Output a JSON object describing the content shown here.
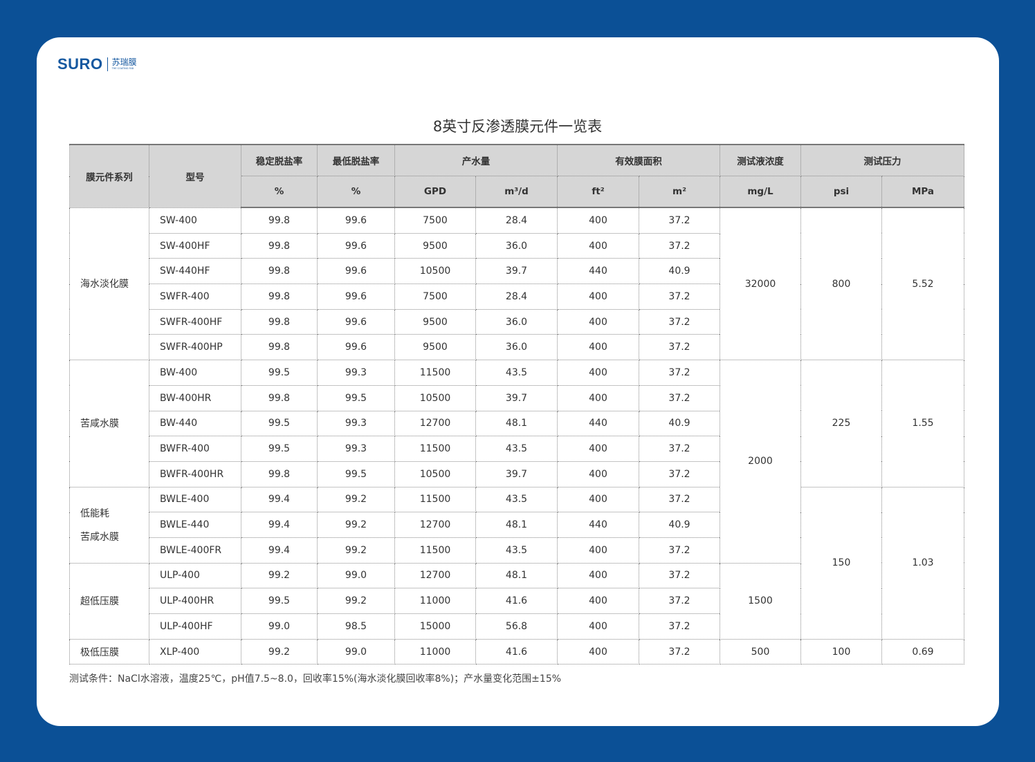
{
  "logo": {
    "brand": "SURO",
    "chinese": "苏瑞膜",
    "tagline": "THE COATING FAB"
  },
  "title": "8英寸反渗透膜元件一览表",
  "headers": {
    "series": "膜元件系列",
    "model": "型号",
    "stable_rejection": "稳定脱盐率",
    "min_rejection": "最低脱盐率",
    "flow": "产水量",
    "area": "有效膜面积",
    "concentration": "测试液浓度",
    "pressure": "测试压力",
    "units": [
      "%",
      "%",
      "GPD",
      "m³/d",
      "ft²",
      "m²",
      "mg/L",
      "psi",
      "MPa"
    ]
  },
  "groups": [
    {
      "series": "海水淡化膜",
      "rows": [
        [
          "SW-400",
          "99.8",
          "99.6",
          "7500",
          "28.4",
          "400",
          "37.2"
        ],
        [
          "SW-400HF",
          "99.8",
          "99.6",
          "9500",
          "36.0",
          "400",
          "37.2"
        ],
        [
          "SW-440HF",
          "99.8",
          "99.6",
          "10500",
          "39.7",
          "440",
          "40.9"
        ],
        [
          "SWFR-400",
          "99.8",
          "99.6",
          "7500",
          "28.4",
          "400",
          "37.2"
        ],
        [
          "SWFR-400HF",
          "99.8",
          "99.6",
          "9500",
          "36.0",
          "400",
          "37.2"
        ],
        [
          "SWFR-400HP",
          "99.8",
          "99.6",
          "9500",
          "36.0",
          "400",
          "37.2"
        ]
      ]
    },
    {
      "series": "苦咸水膜",
      "rows": [
        [
          "BW-400",
          "99.5",
          "99.3",
          "11500",
          "43.5",
          "400",
          "37.2"
        ],
        [
          "BW-400HR",
          "99.8",
          "99.5",
          "10500",
          "39.7",
          "400",
          "37.2"
        ],
        [
          "BW-440",
          "99.5",
          "99.3",
          "12700",
          "48.1",
          "440",
          "40.9"
        ],
        [
          "BWFR-400",
          "99.5",
          "99.3",
          "11500",
          "43.5",
          "400",
          "37.2"
        ],
        [
          "BWFR-400HR",
          "99.8",
          "99.5",
          "10500",
          "39.7",
          "400",
          "37.2"
        ]
      ]
    },
    {
      "series": "低能耗\n苦咸水膜",
      "rows": [
        [
          "BWLE-400",
          "99.4",
          "99.2",
          "11500",
          "43.5",
          "400",
          "37.2"
        ],
        [
          "BWLE-440",
          "99.4",
          "99.2",
          "12700",
          "48.1",
          "440",
          "40.9"
        ],
        [
          "BWLE-400FR",
          "99.4",
          "99.2",
          "11500",
          "43.5",
          "400",
          "37.2"
        ]
      ]
    },
    {
      "series": "超低压膜",
      "rows": [
        [
          "ULP-400",
          "99.2",
          "99.0",
          "12700",
          "48.1",
          "400",
          "37.2"
        ],
        [
          "ULP-400HR",
          "99.5",
          "99.2",
          "11000",
          "41.6",
          "400",
          "37.2"
        ],
        [
          "ULP-400HF",
          "99.0",
          "98.5",
          "15000",
          "56.8",
          "400",
          "37.2"
        ]
      ]
    },
    {
      "series": "极低压膜",
      "rows": [
        [
          "XLP-400",
          "99.2",
          "99.0",
          "11000",
          "41.6",
          "400",
          "37.2"
        ]
      ]
    }
  ],
  "concentration_blocks": [
    {
      "value": "32000",
      "rows": 6
    },
    {
      "value": "2000",
      "rows": 8
    },
    {
      "value": "1500",
      "rows": 3
    },
    {
      "value": "500",
      "rows": 1
    }
  ],
  "pressure_blocks": [
    {
      "psi": "800",
      "mpa": "5.52",
      "rows": 6
    },
    {
      "psi": "225",
      "mpa": "1.55",
      "rows": 5
    },
    {
      "psi": "150",
      "mpa": "1.03",
      "rows": 6
    },
    {
      "psi": "100",
      "mpa": "0.69",
      "rows": 1
    }
  ],
  "note": "测试条件：NaCl水溶液，温度25℃，pH值7.5~8.0，回收率15%(海水淡化膜回收率8%)；产水量变化范围±15%"
}
